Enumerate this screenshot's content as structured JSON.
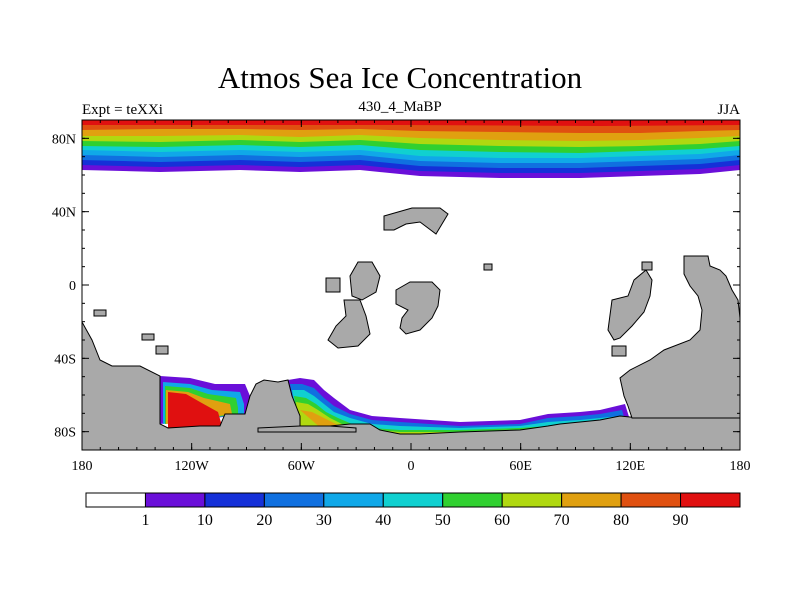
{
  "map": {
    "title": "Atmos Sea Ice Concentration",
    "subtitle_left": "Expt = teXXi",
    "subtitle_center": "430_4_MaBP",
    "subtitle_right": "JJA"
  },
  "axes": {
    "x_labels": [
      "180",
      "120W",
      "60W",
      "0",
      "60E",
      "120E",
      "180"
    ],
    "y_labels": [
      "80N",
      "40N",
      "0",
      "40S",
      "80S"
    ]
  },
  "colorbar": {
    "colors": [
      "#ffffff",
      "#6a0fd9",
      "#1530d8",
      "#1070e0",
      "#10a8e8",
      "#10d0d0",
      "#30d030",
      "#b0d810",
      "#e0a010",
      "#e05010",
      "#e01010"
    ],
    "labels": [
      "1",
      "10",
      "20",
      "30",
      "40",
      "50",
      "60",
      "70",
      "80",
      "90"
    ]
  },
  "colors": {
    "land": "#a9a9a9",
    "ocean": "#ffffff"
  }
}
